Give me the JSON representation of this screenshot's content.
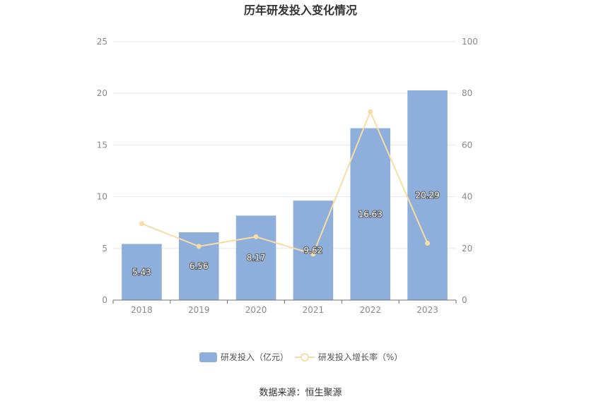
{
  "chart_data": {
    "type": "bar",
    "title": "历年研发投入变化情况",
    "categories": [
      "2018",
      "2019",
      "2020",
      "2021",
      "2022",
      "2023"
    ],
    "series": [
      {
        "name": "研发投入（亿元）",
        "type": "bar",
        "axis": "left",
        "values": [
          5.43,
          6.56,
          8.17,
          9.62,
          16.63,
          20.29
        ],
        "labels": [
          "5.43",
          "6.56",
          "8.17",
          "9.62",
          "16.63",
          "20.29"
        ],
        "color": "#8eaedb"
      },
      {
        "name": "研发投入增长率（%）",
        "type": "line",
        "axis": "right",
        "values": [
          29.6,
          20.8,
          24.5,
          17.8,
          72.9,
          22.0
        ],
        "color": "#f8dca6"
      }
    ],
    "y_left": {
      "min": 0,
      "max": 25,
      "ticks": [
        "0",
        "5",
        "10",
        "15",
        "20",
        "25"
      ]
    },
    "y_right": {
      "min": 0,
      "max": 100,
      "ticks": [
        "0",
        "20",
        "40",
        "60",
        "80",
        "100"
      ]
    },
    "grid": true,
    "legend_position": "bottom"
  },
  "source": "数据来源：恒生聚源"
}
